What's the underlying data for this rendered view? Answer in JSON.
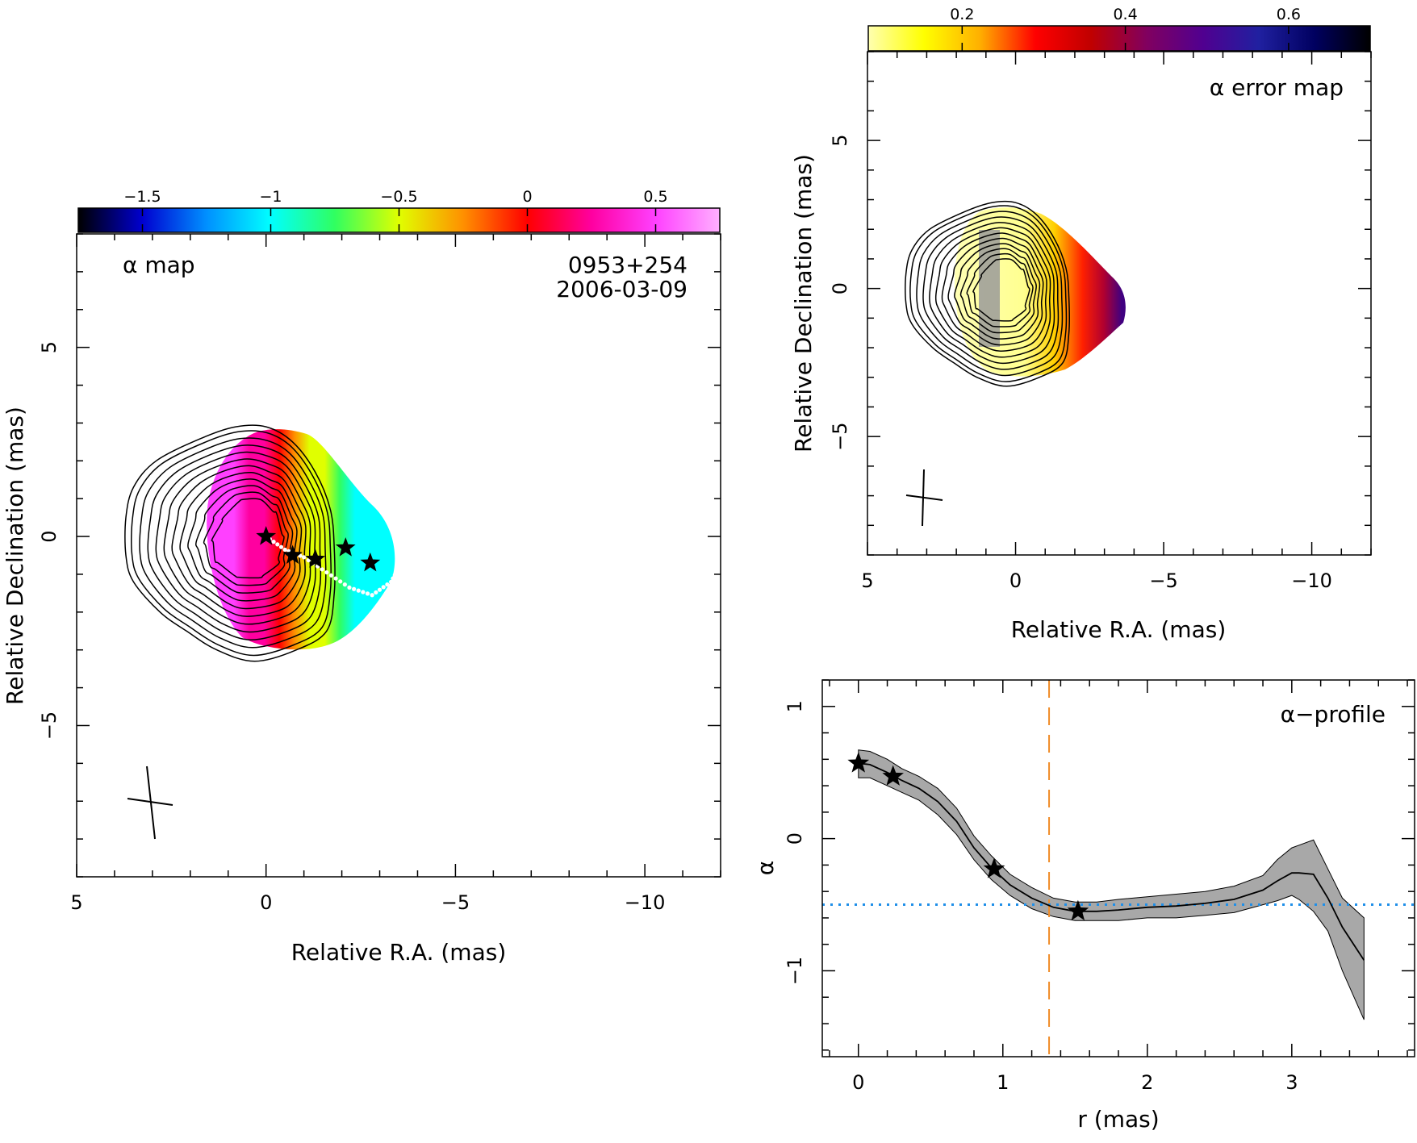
{
  "chart_data": [
    {
      "type": "heatmap",
      "title": "α map",
      "annotation": [
        "0953+254",
        "2006-03-09"
      ],
      "xlabel": "Relative R.A. (mas)",
      "ylabel": "Relative Declination (mas)",
      "xlim": [
        5,
        -12
      ],
      "ylim": [
        -9,
        8
      ],
      "xticks": [
        5,
        0,
        -5,
        -10
      ],
      "xtick_labels": [
        "5",
        "0",
        "−5",
        "−10"
      ],
      "yticks": [
        5,
        0,
        -5
      ],
      "ytick_labels": [
        "5",
        "0",
        "−5"
      ],
      "colorbar": {
        "range": [
          -1.75,
          0.75
        ],
        "ticks": [
          -1.5,
          -1,
          -0.5,
          0,
          0.5
        ],
        "tick_labels": [
          "−1.5",
          "−1",
          "−0.5",
          "0",
          "0.5"
        ],
        "colors": [
          "#000000",
          "#0000d0",
          "#0090ff",
          "#00ffff",
          "#30ff60",
          "#e0ff00",
          "#ff9000",
          "#ff0000",
          "#ff00a0",
          "#ff40ff",
          "#ffb0ff"
        ]
      },
      "map_value_range": [
        -1.0,
        0.55
      ],
      "ridge_points": [
        {
          "x": 0.0,
          "y": 0.0
        },
        {
          "x": -0.7,
          "y": -0.5
        },
        {
          "x": -1.3,
          "y": -0.6
        },
        {
          "x": -2.1,
          "y": -0.3
        },
        {
          "x": -2.75,
          "y": -0.7
        }
      ],
      "beam": {
        "major_mas": 1.9,
        "minor_mas": 1.2,
        "pa_deg": -8
      }
    },
    {
      "type": "heatmap",
      "title": "α error map",
      "xlabel": "Relative R.A. (mas)",
      "ylabel": "Relative Declination (mas)",
      "xlim": [
        5,
        -12
      ],
      "ylim": [
        -9,
        8
      ],
      "xticks": [
        5,
        0,
        -5,
        -10
      ],
      "xtick_labels": [
        "5",
        "0",
        "−5",
        "−10"
      ],
      "yticks": [
        5,
        0,
        -5
      ],
      "ytick_labels": [
        "5",
        "0",
        "−5"
      ],
      "colorbar": {
        "range": [
          0.085,
          0.7
        ],
        "ticks": [
          0.2,
          0.4,
          0.6
        ],
        "tick_labels": [
          "0.2",
          "0.4",
          "0.6"
        ],
        "colors": [
          "#ffffb0",
          "#ffff00",
          "#ffb000",
          "#ff0000",
          "#c00000",
          "#800060",
          "#500090",
          "#2020a0",
          "#000060",
          "#000000"
        ]
      },
      "beam": {
        "major_mas": 1.9,
        "minor_mas": 1.2,
        "pa_deg": -8
      }
    },
    {
      "type": "line",
      "title": "α−profile",
      "xlabel": "r (mas)",
      "ylabel": "α",
      "xlim": [
        -0.25,
        3.85
      ],
      "ylim": [
        -1.65,
        1.2
      ],
      "xticks": [
        0,
        1,
        2,
        3
      ],
      "xtick_labels": [
        "0",
        "1",
        "2",
        "3"
      ],
      "yticks": [
        1,
        0,
        -1
      ],
      "ytick_labels": [
        "1",
        "0",
        "−1"
      ],
      "x": [
        0.0,
        0.08,
        0.2,
        0.3,
        0.42,
        0.55,
        0.68,
        0.8,
        0.92,
        1.05,
        1.2,
        1.35,
        1.5,
        1.65,
        1.8,
        2.0,
        2.2,
        2.4,
        2.6,
        2.8,
        2.9,
        3.0,
        3.05,
        3.15,
        3.25,
        3.35,
        3.5
      ],
      "y": [
        0.57,
        0.56,
        0.5,
        0.44,
        0.38,
        0.28,
        0.13,
        -0.07,
        -0.22,
        -0.35,
        -0.45,
        -0.52,
        -0.55,
        -0.55,
        -0.54,
        -0.52,
        -0.51,
        -0.49,
        -0.46,
        -0.39,
        -0.32,
        -0.26,
        -0.26,
        -0.27,
        -0.45,
        -0.67,
        -0.92
      ],
      "band_upper": [
        0.67,
        0.66,
        0.6,
        0.53,
        0.47,
        0.38,
        0.23,
        0.02,
        -0.13,
        -0.27,
        -0.37,
        -0.45,
        -0.48,
        -0.48,
        -0.46,
        -0.44,
        -0.42,
        -0.4,
        -0.36,
        -0.28,
        -0.16,
        -0.07,
        -0.05,
        -0.01,
        -0.23,
        -0.45,
        -0.6
      ],
      "band_lower": [
        0.46,
        0.46,
        0.4,
        0.35,
        0.29,
        0.18,
        0.03,
        -0.16,
        -0.31,
        -0.43,
        -0.53,
        -0.59,
        -0.62,
        -0.62,
        -0.62,
        -0.6,
        -0.6,
        -0.58,
        -0.56,
        -0.5,
        -0.47,
        -0.43,
        -0.46,
        -0.55,
        -0.7,
        -1.0,
        -1.37
      ],
      "markers": [
        {
          "x": 0.0,
          "y": 0.57
        },
        {
          "x": 0.24,
          "y": 0.47
        },
        {
          "x": 0.94,
          "y": -0.23
        },
        {
          "x": 1.52,
          "y": -0.55
        }
      ],
      "vline_x": 1.32,
      "hline_y": -0.5,
      "colors": {
        "band": "#a8a8a8",
        "vline": "#f08c28",
        "hline": "#1f8fe8"
      }
    }
  ]
}
